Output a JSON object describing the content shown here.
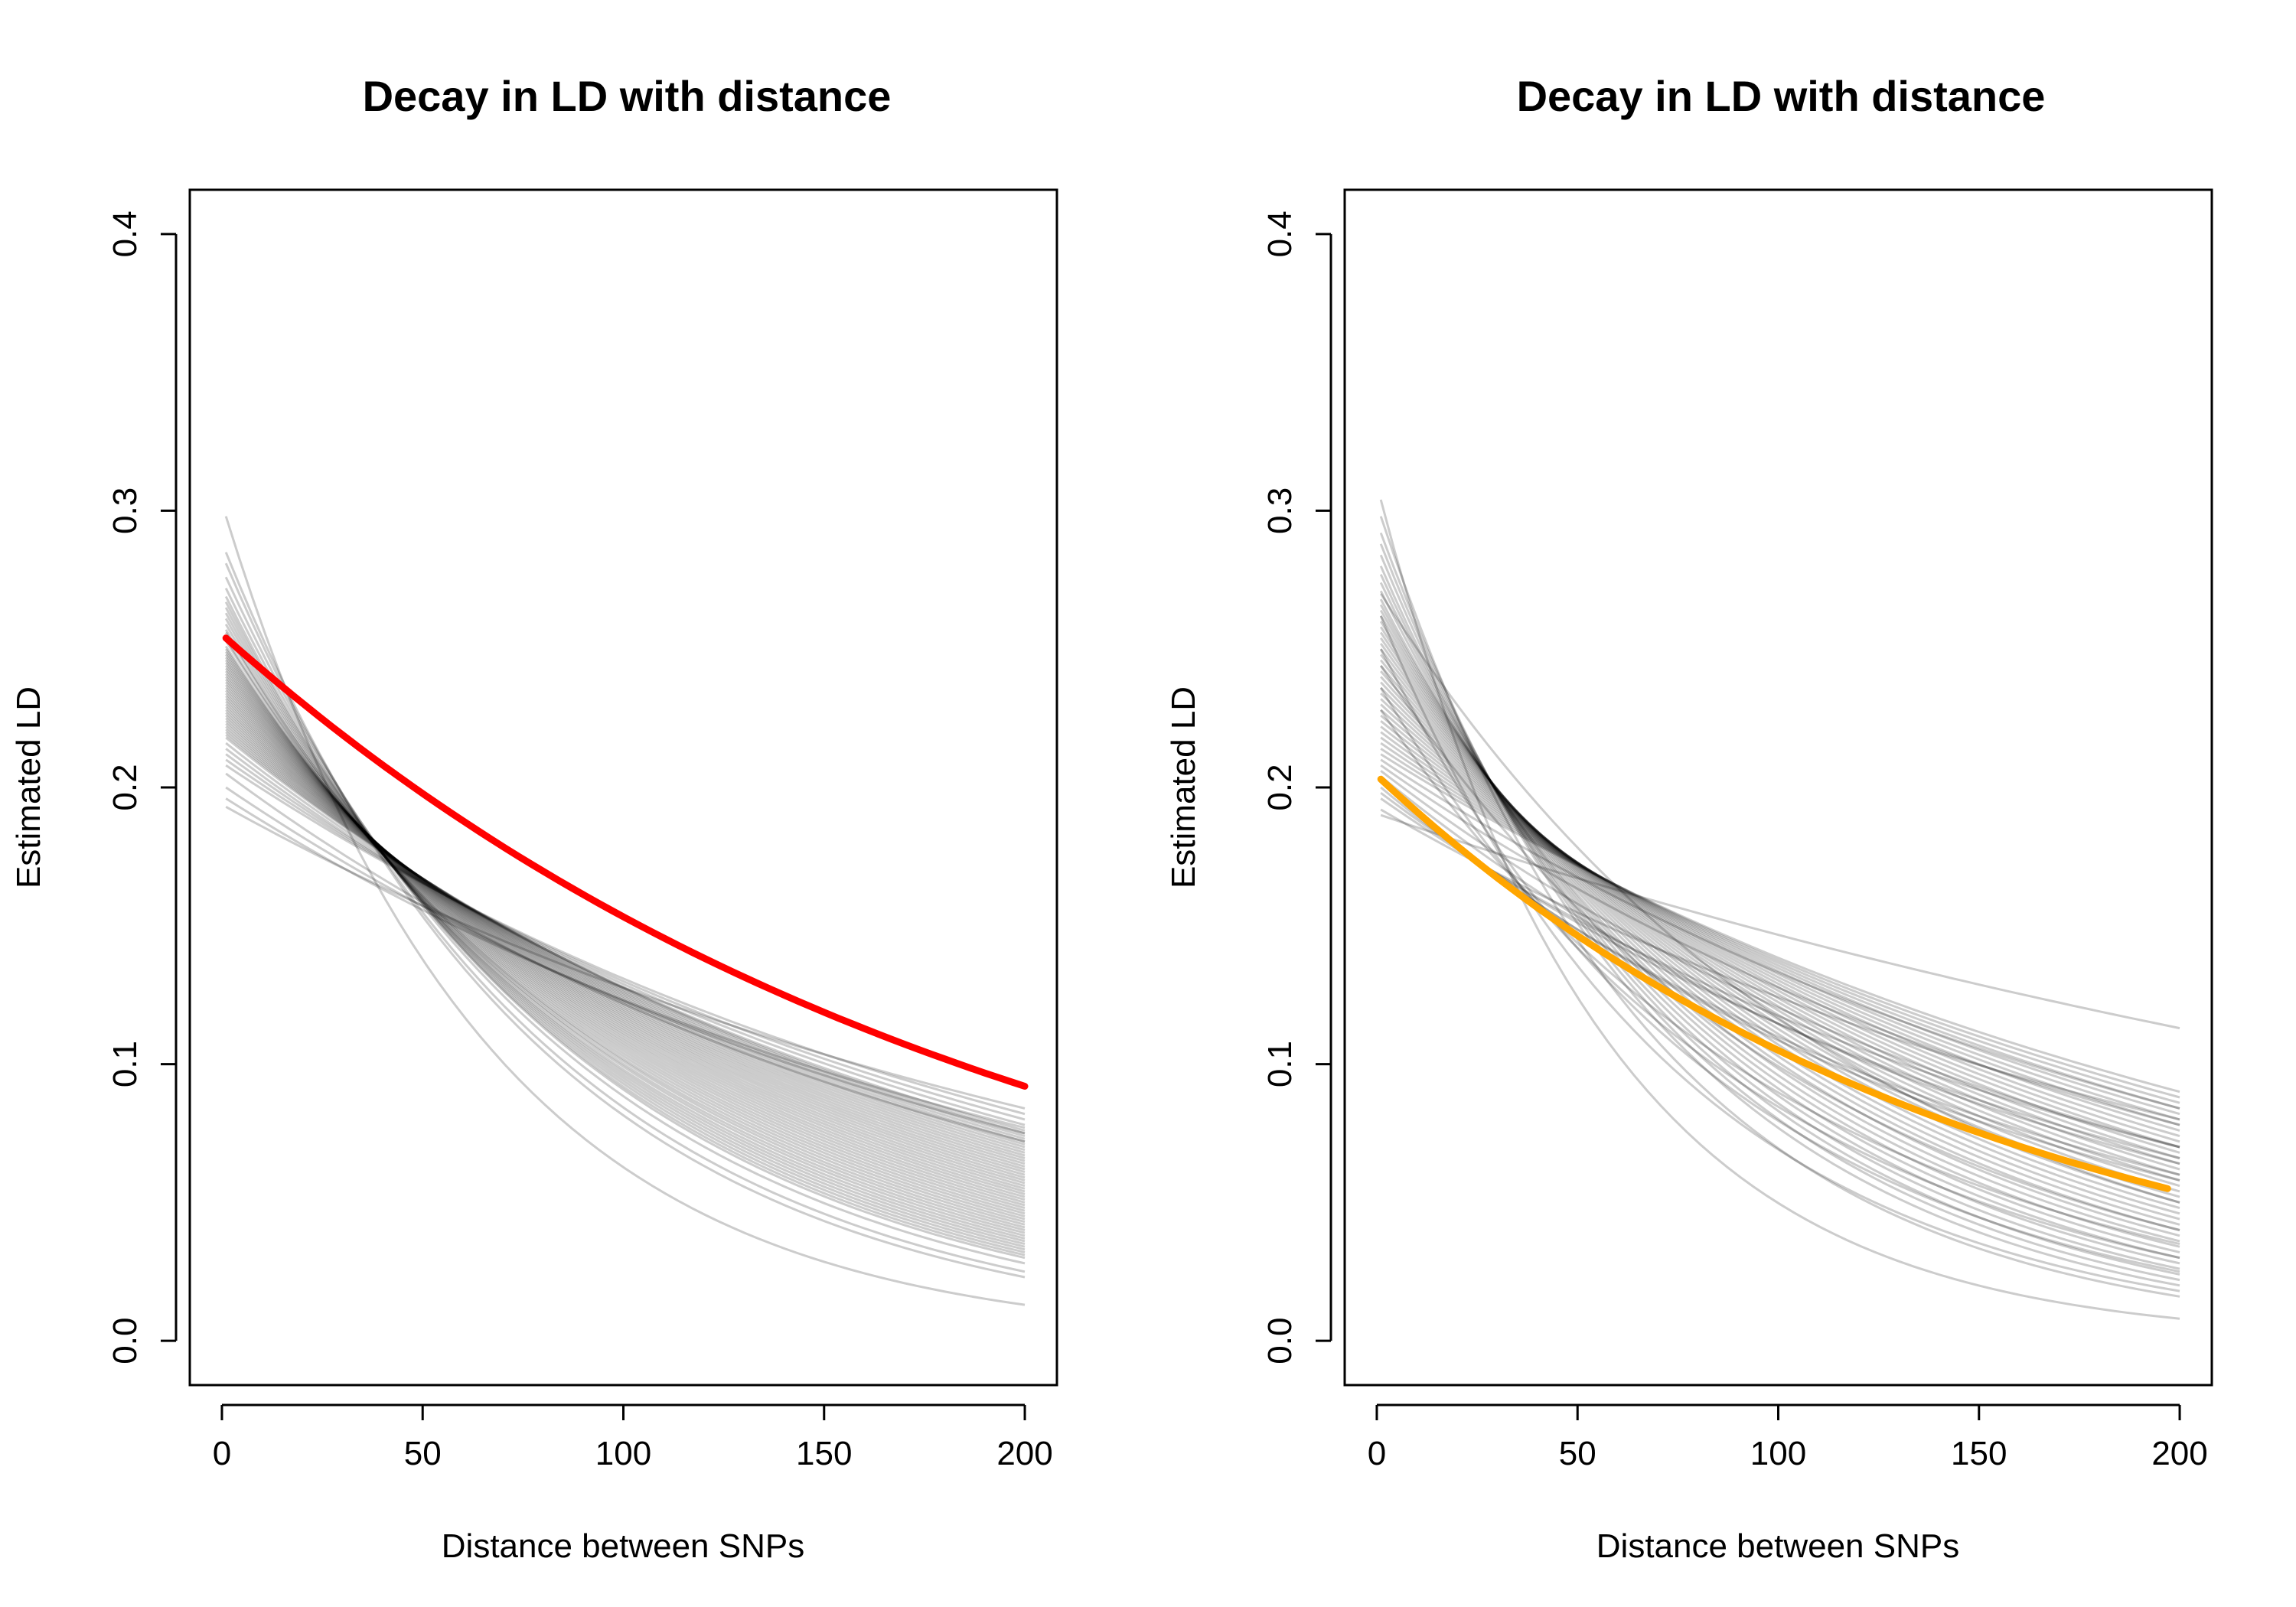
{
  "chart_data": [
    {
      "type": "line",
      "title": "Decay in LD with distance",
      "xlabel": "Distance between SNPs",
      "ylabel": "Estimated LD",
      "xlim": [
        -8,
        208
      ],
      "ylim": [
        -0.016,
        0.416
      ],
      "xticks": [
        0,
        50,
        100,
        150,
        200
      ],
      "xtick_labels": [
        "0",
        "50",
        "100",
        "150",
        "200"
      ],
      "yticks": [
        0.0,
        0.1,
        0.2,
        0.3,
        0.4
      ],
      "ytick_labels": [
        "0.0",
        "0.1",
        "0.2",
        "0.3",
        "0.4"
      ],
      "grid": false,
      "x_range": [
        1,
        200
      ],
      "posterior_draws": {
        "description_of_model": "y = a * exp(-b * x)",
        "a_samples": [
          0.298,
          0.285,
          0.281,
          0.276,
          0.272,
          0.269,
          0.267,
          0.265,
          0.263,
          0.261,
          0.259,
          0.257,
          0.256,
          0.254,
          0.253,
          0.251,
          0.25,
          0.249,
          0.248,
          0.247,
          0.246,
          0.245,
          0.244,
          0.243,
          0.242,
          0.241,
          0.24,
          0.239,
          0.238,
          0.237,
          0.236,
          0.235,
          0.234,
          0.233,
          0.232,
          0.231,
          0.23,
          0.229,
          0.228,
          0.227,
          0.226,
          0.225,
          0.224,
          0.223,
          0.222,
          0.221,
          0.22,
          0.219,
          0.218,
          0.216,
          0.214,
          0.212,
          0.21,
          0.208,
          0.205,
          0.2,
          0.196,
          0.193
        ],
        "y200_samples": [
          0.013,
          0.023,
          0.025,
          0.028,
          0.03,
          0.031,
          0.032,
          0.033,
          0.034,
          0.035,
          0.036,
          0.037,
          0.038,
          0.039,
          0.04,
          0.041,
          0.042,
          0.043,
          0.044,
          0.045,
          0.046,
          0.047,
          0.048,
          0.049,
          0.05,
          0.051,
          0.052,
          0.053,
          0.054,
          0.055,
          0.056,
          0.057,
          0.058,
          0.059,
          0.06,
          0.061,
          0.062,
          0.063,
          0.064,
          0.065,
          0.066,
          0.067,
          0.068,
          0.069,
          0.07,
          0.071,
          0.072,
          0.073,
          0.074,
          0.075,
          0.076,
          0.078,
          0.08,
          0.082,
          0.072,
          0.075,
          0.077,
          0.084
        ],
        "color": "#000000",
        "opacity": 0.2
      },
      "highlight": {
        "y_at_start": 0.254,
        "y_at_end": 0.092,
        "color": "#ff0000"
      }
    },
    {
      "type": "line",
      "title": "Decay in LD with distance",
      "xlabel": "Distance between SNPs",
      "ylabel": "Estimated LD",
      "xlim": [
        -8,
        208
      ],
      "ylim": [
        -0.016,
        0.416
      ],
      "xticks": [
        0,
        50,
        100,
        150,
        200
      ],
      "xtick_labels": [
        "0",
        "50",
        "100",
        "150",
        "200"
      ],
      "yticks": [
        0.0,
        0.1,
        0.2,
        0.3,
        0.4
      ],
      "ytick_labels": [
        "0.0",
        "0.1",
        "0.2",
        "0.3",
        "0.4"
      ],
      "grid": false,
      "x_range": [
        1,
        200
      ],
      "posterior_draws": {
        "description_of_model": "y = a * exp(-b * x)",
        "a_samples": [
          0.304,
          0.298,
          0.292,
          0.288,
          0.284,
          0.28,
          0.277,
          0.274,
          0.271,
          0.268,
          0.266,
          0.264,
          0.262,
          0.26,
          0.258,
          0.256,
          0.254,
          0.252,
          0.25,
          0.248,
          0.246,
          0.244,
          0.242,
          0.24,
          0.238,
          0.236,
          0.234,
          0.232,
          0.23,
          0.228,
          0.226,
          0.224,
          0.222,
          0.22,
          0.218,
          0.216,
          0.214,
          0.212,
          0.21,
          0.208,
          0.206,
          0.204,
          0.2,
          0.196,
          0.192,
          0.19,
          0.262,
          0.25,
          0.236,
          0.228,
          0.27,
          0.244,
          0.202,
          0.198
        ],
        "y200_samples": [
          0.008,
          0.016,
          0.02,
          0.022,
          0.024,
          0.026,
          0.028,
          0.03,
          0.032,
          0.034,
          0.036,
          0.038,
          0.04,
          0.042,
          0.044,
          0.046,
          0.048,
          0.05,
          0.052,
          0.054,
          0.056,
          0.058,
          0.06,
          0.062,
          0.064,
          0.066,
          0.068,
          0.07,
          0.072,
          0.074,
          0.076,
          0.078,
          0.08,
          0.082,
          0.084,
          0.086,
          0.088,
          0.09,
          0.084,
          0.078,
          0.07,
          0.064,
          0.06,
          0.07,
          0.08,
          0.113,
          0.018,
          0.025,
          0.03,
          0.035,
          0.05,
          0.04,
          0.058,
          0.066
        ],
        "color": "#000000",
        "opacity": 0.2
      },
      "highlight": {
        "y_at_start": 0.203,
        "y_at_end": 0.055,
        "x_end": 197,
        "color": "#ffa500"
      }
    }
  ]
}
